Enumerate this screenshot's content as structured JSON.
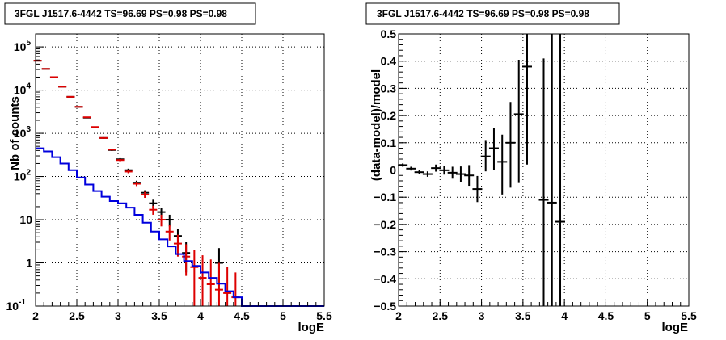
{
  "chart_data": [
    {
      "type": "scatter",
      "title": "3FGL J1517.6-4442 TS=96.69 PS=0.98 PS=0.98",
      "xlabel": "logE",
      "ylabel": "Nb of counts",
      "xlim": [
        2,
        5.5
      ],
      "ylim": [
        0.1,
        200000
      ],
      "yscale": "log",
      "grid": true,
      "x_ticks": [
        "2",
        "2.5",
        "3",
        "3.5",
        "4",
        "4.5",
        "5",
        "5.5"
      ],
      "y_ticks": [
        {
          "value": 0.1,
          "base": "10",
          "exp": "-1"
        },
        {
          "value": 1,
          "base": "1",
          "exp": ""
        },
        {
          "value": 10,
          "base": "10",
          "exp": ""
        },
        {
          "value": 100,
          "base": "10",
          "exp": "2"
        },
        {
          "value": 1000,
          "base": "10",
          "exp": "3"
        },
        {
          "value": 10000,
          "base": "10",
          "exp": "4"
        },
        {
          "value": 100000,
          "base": "10",
          "exp": "5"
        }
      ],
      "colors": {
        "data": "#000000",
        "model": "#dd0000",
        "background": "#0000dd"
      },
      "series": [
        {
          "style": "data-errorbars",
          "color": "#000000",
          "points": [
            {
              "x": 2.025,
              "y": 48000,
              "lo": 47600,
              "hi": 48400
            },
            {
              "x": 2.125,
              "y": 31000,
              "lo": 30700,
              "hi": 31300
            },
            {
              "x": 2.225,
              "y": 20000,
              "lo": 19750,
              "hi": 20250
            },
            {
              "x": 2.325,
              "y": 12000,
              "lo": 11800,
              "hi": 12200
            },
            {
              "x": 2.425,
              "y": 7000,
              "lo": 6850,
              "hi": 7150
            },
            {
              "x": 2.525,
              "y": 4100,
              "lo": 4000,
              "hi": 4200
            },
            {
              "x": 2.625,
              "y": 2300,
              "lo": 2250,
              "hi": 2350
            },
            {
              "x": 2.725,
              "y": 1380,
              "lo": 1340,
              "hi": 1420
            },
            {
              "x": 2.825,
              "y": 780,
              "lo": 750,
              "hi": 810
            },
            {
              "x": 2.925,
              "y": 410,
              "lo": 390,
              "hi": 430
            },
            {
              "x": 3.025,
              "y": 250,
              "lo": 235,
              "hi": 265
            },
            {
              "x": 3.125,
              "y": 140,
              "lo": 128,
              "hi": 152
            },
            {
              "x": 3.225,
              "y": 72,
              "lo": 64,
              "hi": 80
            },
            {
              "x": 3.325,
              "y": 42,
              "lo": 36,
              "hi": 48
            },
            {
              "x": 3.425,
              "y": 24,
              "lo": 19,
              "hi": 29
            },
            {
              "x": 3.525,
              "y": 15,
              "lo": 11,
              "hi": 19
            },
            {
              "x": 3.625,
              "y": 10,
              "lo": 7,
              "hi": 13
            },
            {
              "x": 3.725,
              "y": 4.2,
              "lo": 2.2,
              "hi": 6.2
            },
            {
              "x": 3.825,
              "y": 1.7,
              "lo": 0.6,
              "hi": 3
            },
            {
              "x": 4.225,
              "y": 1.0,
              "lo": 0.3,
              "hi": 2.2
            }
          ]
        },
        {
          "style": "model-errorbars",
          "color": "#dd0000",
          "points": [
            {
              "x": 2.025,
              "y": 48000,
              "lo": 47600,
              "hi": 48400
            },
            {
              "x": 2.125,
              "y": 31000,
              "lo": 30700,
              "hi": 31300
            },
            {
              "x": 2.225,
              "y": 20000,
              "lo": 19750,
              "hi": 20250
            },
            {
              "x": 2.325,
              "y": 12000,
              "lo": 11800,
              "hi": 12200
            },
            {
              "x": 2.425,
              "y": 7000,
              "lo": 6850,
              "hi": 7150
            },
            {
              "x": 2.525,
              "y": 4100,
              "lo": 4000,
              "hi": 4200
            },
            {
              "x": 2.625,
              "y": 2350,
              "lo": 2300,
              "hi": 2400
            },
            {
              "x": 2.725,
              "y": 1400,
              "lo": 1360,
              "hi": 1440
            },
            {
              "x": 2.825,
              "y": 780,
              "lo": 750,
              "hi": 810
            },
            {
              "x": 2.925,
              "y": 420,
              "lo": 400,
              "hi": 440
            },
            {
              "x": 3.025,
              "y": 240,
              "lo": 225,
              "hi": 255
            },
            {
              "x": 3.125,
              "y": 130,
              "lo": 119,
              "hi": 141
            },
            {
              "x": 3.225,
              "y": 68,
              "lo": 60,
              "hi": 76
            },
            {
              "x": 3.325,
              "y": 38,
              "lo": 32,
              "hi": 44
            },
            {
              "x": 3.425,
              "y": 17,
              "lo": 13,
              "hi": 21
            },
            {
              "x": 3.525,
              "y": 10,
              "lo": 7,
              "hi": 13
            },
            {
              "x": 3.625,
              "y": 5.3,
              "lo": 3.3,
              "hi": 7.6
            },
            {
              "x": 3.725,
              "y": 2.8,
              "lo": 1.4,
              "hi": 4.5
            },
            {
              "x": 3.825,
              "y": 1.4,
              "lo": 0.5,
              "hi": 2.7
            },
            {
              "x": 3.925,
              "y": 0.8,
              "lo": 0.1,
              "hi": 2.0
            },
            {
              "x": 4.025,
              "y": 0.45,
              "lo": 0.1,
              "hi": 1.5
            },
            {
              "x": 4.125,
              "y": 0.32,
              "lo": 0.1,
              "hi": 1.2
            },
            {
              "x": 4.225,
              "y": 0.24,
              "lo": 0.1,
              "hi": 1.0
            },
            {
              "x": 4.325,
              "y": 0.2,
              "lo": 0.1,
              "hi": 0.8
            },
            {
              "x": 4.425,
              "y": 0.16,
              "lo": 0.1,
              "hi": 0.6
            }
          ]
        },
        {
          "style": "step",
          "color": "#0000dd",
          "edges": [
            2.0,
            2.1,
            2.2,
            2.3,
            2.4,
            2.5,
            2.6,
            2.7,
            2.8,
            2.9,
            3.0,
            3.1,
            3.2,
            3.3,
            3.4,
            3.5,
            3.6,
            3.7,
            3.8,
            3.9,
            4.0,
            4.1,
            4.2,
            4.3,
            4.4,
            4.5,
            5.5
          ],
          "values": [
            450,
            380,
            280,
            200,
            140,
            95,
            65,
            46,
            34,
            27,
            24,
            19,
            13,
            8.5,
            5.3,
            3.5,
            2.4,
            1.6,
            1.1,
            0.85,
            0.6,
            0.45,
            0.33,
            0.22,
            0.16,
            0.1
          ]
        }
      ]
    },
    {
      "type": "scatter",
      "title": "3FGL J1517.6-4442 TS=96.69 PS=0.98 PS=0.98",
      "xlabel": "logE",
      "ylabel": "(data-model)/model",
      "xlim": [
        2,
        5.5
      ],
      "ylim": [
        -0.5,
        0.5
      ],
      "grid": true,
      "x_ticks": [
        "2",
        "2.5",
        "3",
        "3.5",
        "4",
        "4.5",
        "5",
        "5.5"
      ],
      "y_ticks": [
        "−0.5",
        "−0.4",
        "−0.3",
        "−0.2",
        "−0.1",
        "0",
        "0.1",
        "0.2",
        "0.3",
        "0.4",
        "0.5"
      ],
      "series": [
        {
          "style": "data-errorbars",
          "color": "#000000",
          "points": [
            {
              "x": 2.05,
              "y": 0.018,
              "lo": 0.012,
              "hi": 0.024
            },
            {
              "x": 2.15,
              "y": 0.005,
              "lo": -0.002,
              "hi": 0.012
            },
            {
              "x": 2.25,
              "y": -0.008,
              "lo": -0.016,
              "hi": 0.0
            },
            {
              "x": 2.35,
              "y": -0.015,
              "lo": -0.025,
              "hi": -0.005
            },
            {
              "x": 2.45,
              "y": 0.007,
              "lo": -0.006,
              "hi": 0.02
            },
            {
              "x": 2.55,
              "y": -0.001,
              "lo": -0.017,
              "hi": 0.015
            },
            {
              "x": 2.65,
              "y": -0.01,
              "lo": -0.032,
              "hi": 0.012
            },
            {
              "x": 2.75,
              "y": -0.015,
              "lo": -0.043,
              "hi": 0.013
            },
            {
              "x": 2.85,
              "y": -0.02,
              "lo": -0.058,
              "hi": 0.018
            },
            {
              "x": 2.95,
              "y": -0.07,
              "lo": -0.118,
              "hi": -0.022
            },
            {
              "x": 3.05,
              "y": 0.05,
              "lo": -0.005,
              "hi": 0.11
            },
            {
              "x": 3.15,
              "y": 0.08,
              "lo": 0.0,
              "hi": 0.155
            },
            {
              "x": 3.25,
              "y": 0.03,
              "lo": -0.09,
              "hi": 0.13
            },
            {
              "x": 3.35,
              "y": 0.1,
              "lo": -0.065,
              "hi": 0.25
            },
            {
              "x": 3.45,
              "y": 0.205,
              "lo": -0.045,
              "hi": 0.405
            },
            {
              "x": 3.55,
              "y": 0.38,
              "lo": 0.02,
              "hi": 0.5
            },
            {
              "x": 3.75,
              "y": -0.11,
              "lo": -0.5,
              "hi": 0.41
            },
            {
              "x": 3.85,
              "y": -0.12,
              "lo": -0.5,
              "hi": 0.5
            },
            {
              "x": 3.95,
              "y": -0.19,
              "lo": -0.5,
              "hi": 0.5
            }
          ]
        }
      ]
    }
  ]
}
